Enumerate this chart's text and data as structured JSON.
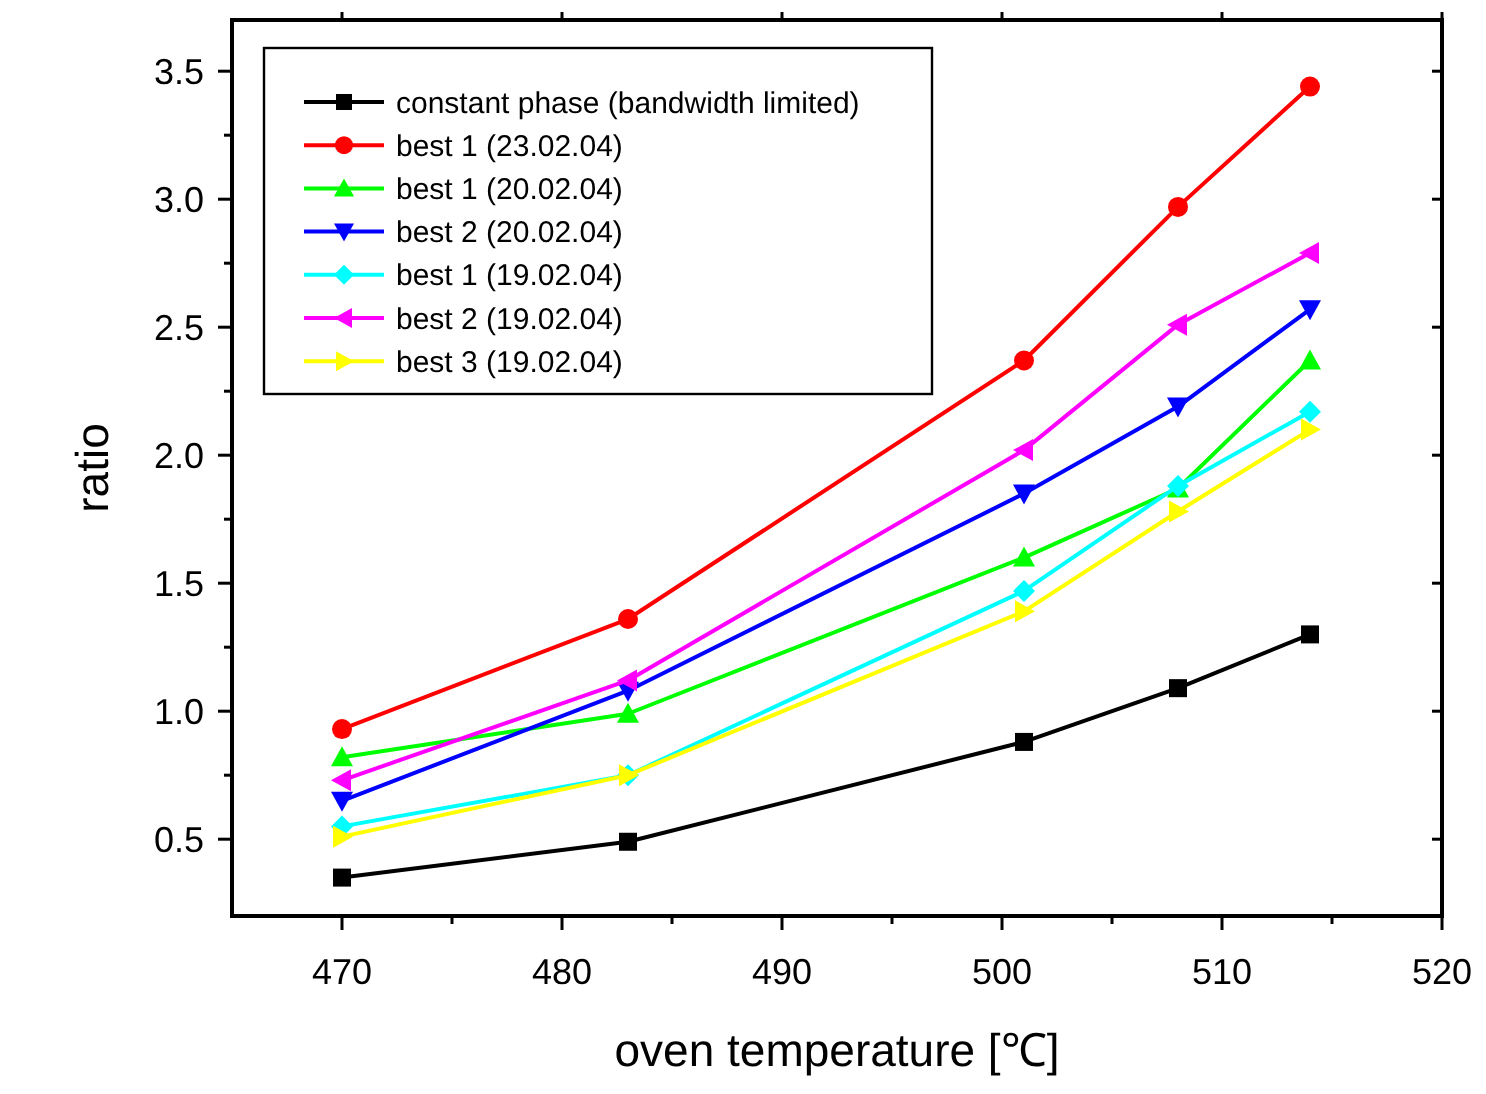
{
  "chart_data": {
    "type": "line",
    "xlabel": "oven temperature [℃]",
    "ylabel": "ratio",
    "xlim": [
      465,
      520
    ],
    "xticks": [
      470,
      480,
      490,
      500,
      510,
      520
    ],
    "ylim": [
      0.2,
      3.7
    ],
    "yticks": [
      0.5,
      {
        "value": 1,
        "label": "1.0"
      },
      1.5,
      {
        "value": 2,
        "label": "2.0"
      },
      2.5,
      {
        "value": 3,
        "label": "3.0"
      },
      3.5
    ],
    "x": [
      470,
      483,
      501,
      508,
      514
    ],
    "legend": "top left",
    "grid": false,
    "series": [
      {
        "name": "constant phase (bandwidth limited)",
        "color": "#000000",
        "marker": "square",
        "values": [
          0.35,
          0.49,
          0.88,
          1.09,
          1.3
        ]
      },
      {
        "name": "best 1 (23.02.04)",
        "color": "#ff0000",
        "marker": "circle",
        "values": [
          0.93,
          1.36,
          2.37,
          2.97,
          3.44
        ]
      },
      {
        "name": "best 1 (20.02.04)",
        "color": "#00ff00",
        "marker": "triangle",
        "values": [
          0.82,
          0.99,
          1.6,
          1.87,
          2.37
        ]
      },
      {
        "name": "best 2 (20.02.04)",
        "color": "#0000ff",
        "marker": "triangle-down",
        "values": [
          0.65,
          1.08,
          1.85,
          2.19,
          2.57
        ]
      },
      {
        "name": "best 1 (19.02.04)",
        "color": "#00ffff",
        "marker": "diamond",
        "values": [
          0.55,
          0.75,
          1.47,
          1.88,
          2.17
        ]
      },
      {
        "name": "best 2 (19.02.04)",
        "color": "#ff00ff",
        "marker": "triangle-left",
        "values": [
          0.73,
          1.12,
          2.02,
          2.51,
          2.79
        ]
      },
      {
        "name": "best 3 (19.02.04)",
        "color": "#ffff00",
        "marker": "triangle-right",
        "values": [
          0.51,
          0.75,
          1.39,
          1.78,
          2.1
        ]
      }
    ]
  }
}
